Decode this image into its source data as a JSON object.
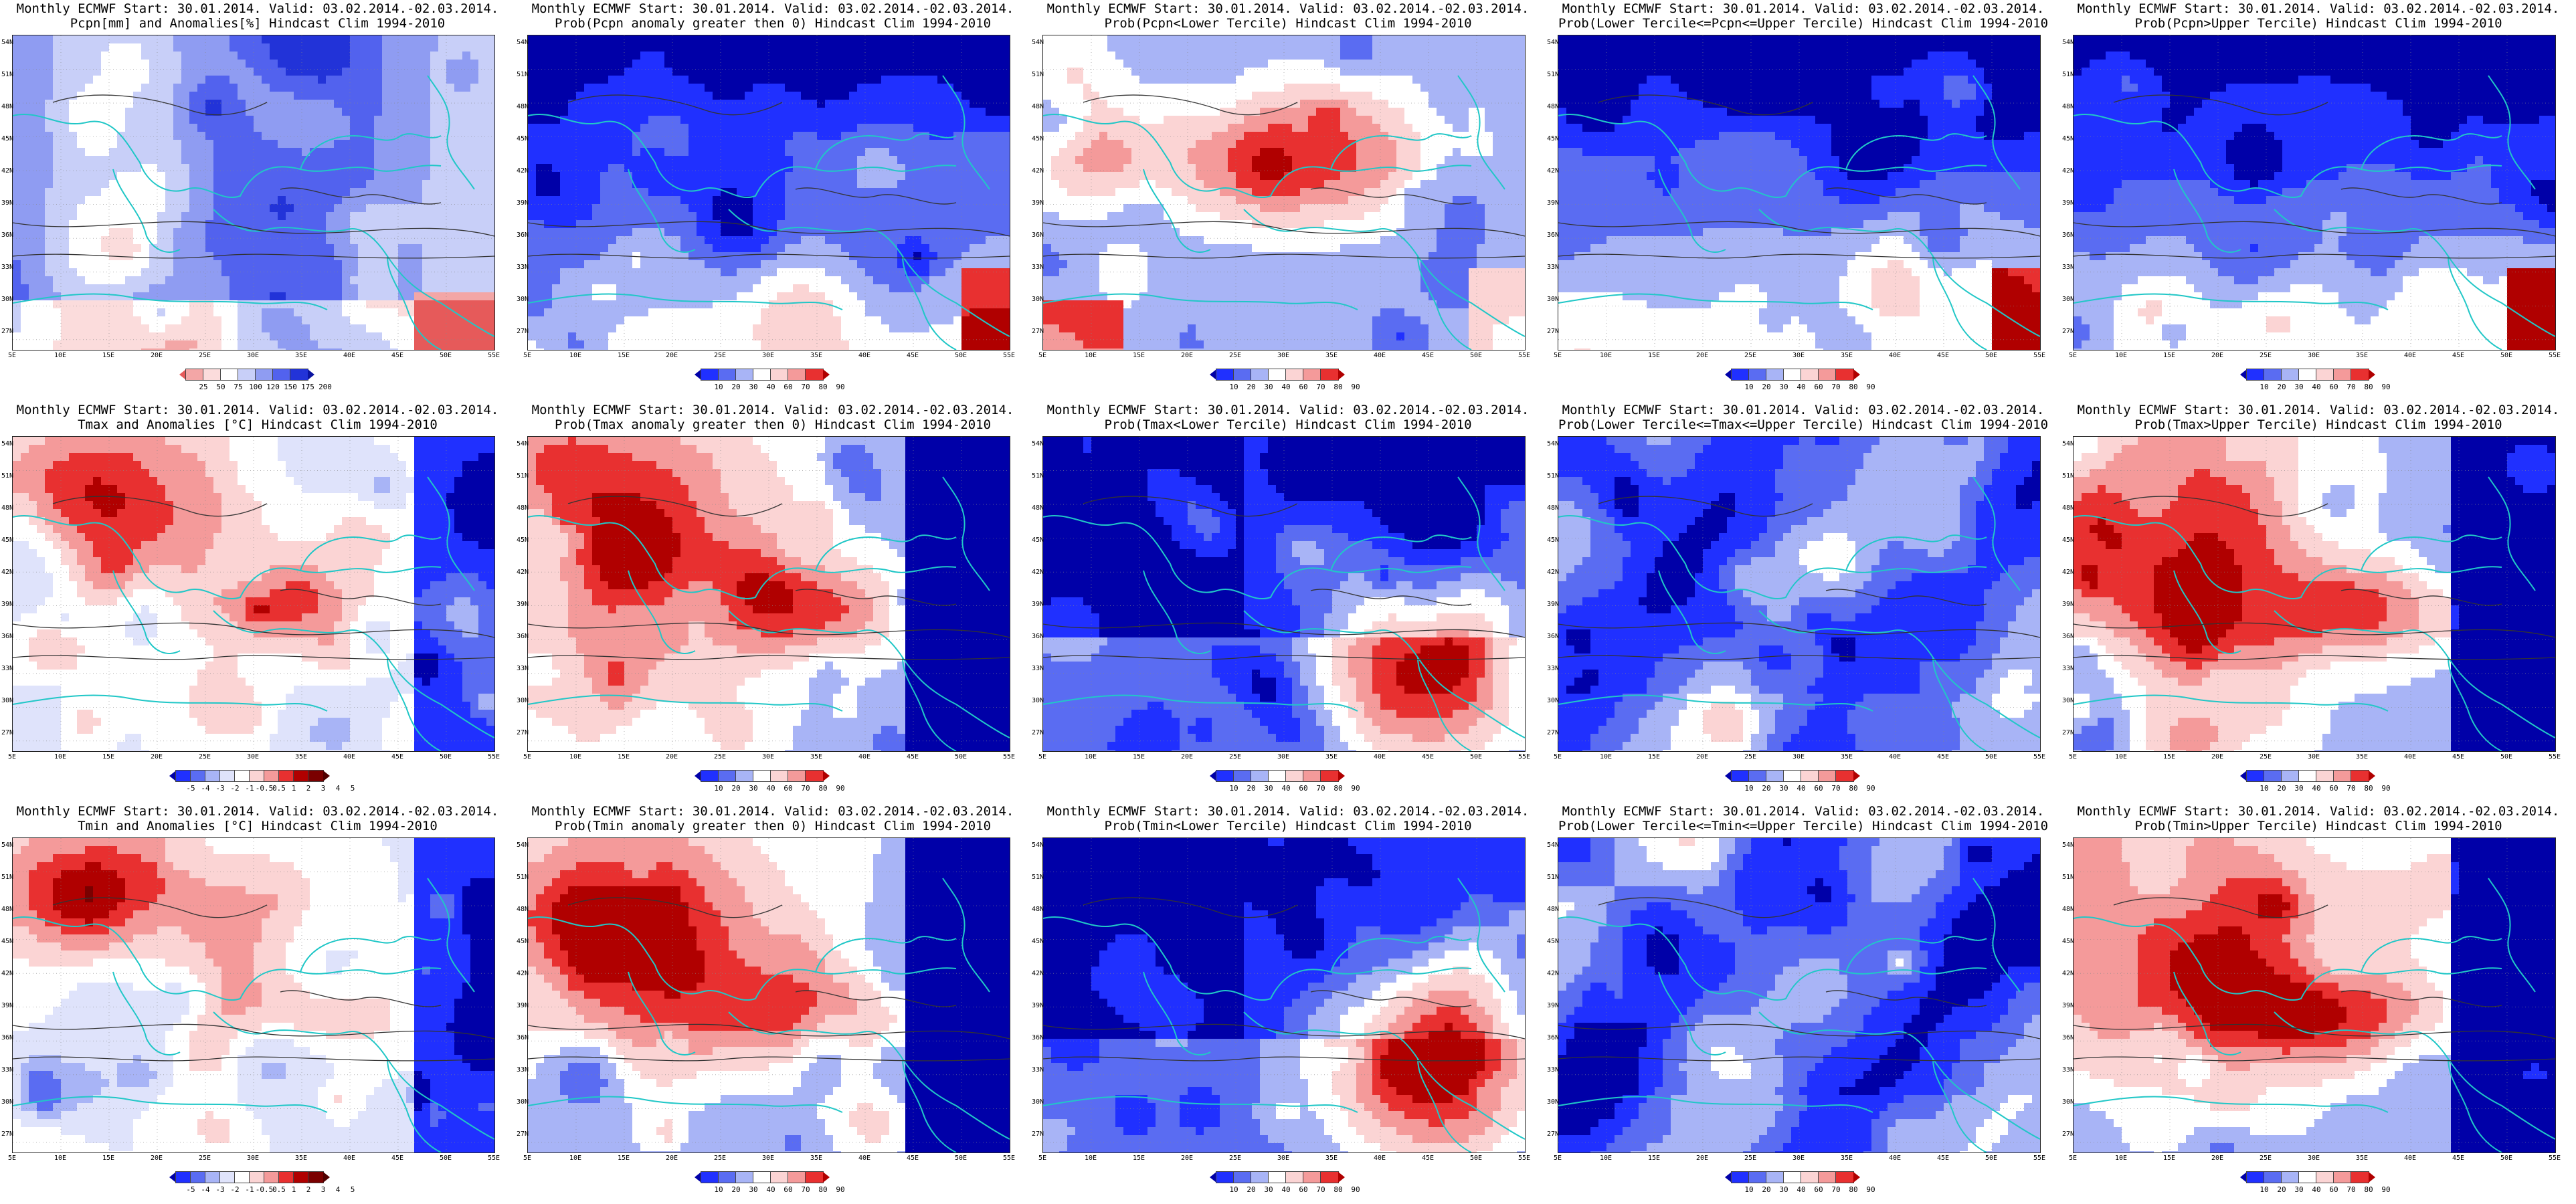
{
  "colors": {
    "darkblue": "#0000a8",
    "blue": "#2030ff",
    "midblue": "#5a6cf2",
    "lightblue": "#a8b4f6",
    "paleblue": "#dfe3fb",
    "white": "#ffffff",
    "palered": "#fbd4d4",
    "lightred": "#f49a9a",
    "red": "#e83030",
    "darkred": "#b00000",
    "coast": "#21c7c7",
    "contour": "#333333"
  },
  "latitudes": [
    "54N",
    "51N",
    "48N",
    "45N",
    "42N",
    "39N",
    "36N",
    "33N",
    "30N",
    "27N"
  ],
  "longitudes": [
    "5E",
    "10E",
    "15E",
    "20E",
    "25E",
    "30E",
    "35E",
    "40E",
    "45E",
    "50E",
    "55E"
  ],
  "panels": [
    {
      "line1": "Monthly ECMWF Start: 30.01.2014. Valid: 03.02.2014.-02.03.2014.",
      "line2": "Pcpn[mm] and Anomalies[%] Hindcast Clim 1994-2010",
      "cbar": "pcpn",
      "ticks": [
        "25",
        "50",
        "75",
        "100",
        "120",
        "150",
        "175",
        "200"
      ],
      "pattern": "wet_south"
    },
    {
      "line1": "Monthly ECMWF Start: 30.01.2014. Valid: 03.02.2014.-02.03.2014.",
      "line2": "Prob(Pcpn anomaly greater then 0) Hindcast Clim 1994-2010",
      "cbar": "prob",
      "ticks": [
        "10",
        "20",
        "30",
        "40",
        "60",
        "70",
        "80",
        "90"
      ],
      "pattern": "blue_north"
    },
    {
      "line1": "Monthly ECMWF Start: 30.01.2014. Valid: 03.02.2014.-02.03.2014.",
      "line2": "Prob(Pcpn<Lower Tercile) Hindcast Clim 1994-2010",
      "cbar": "prob",
      "ticks": [
        "10",
        "20",
        "30",
        "40",
        "60",
        "70",
        "80",
        "90"
      ],
      "pattern": "red_center"
    },
    {
      "line1": "Monthly ECMWF Start: 30.01.2014. Valid: 03.02.2014.-02.03.2014.",
      "line2": "Prob(Lower Tercile<=Pcpn<=Upper Tercile) Hindcast Clim 1994-2010",
      "cbar": "prob",
      "ticks": [
        "10",
        "20",
        "30",
        "40",
        "60",
        "70",
        "80",
        "90"
      ],
      "pattern": "blue_north"
    },
    {
      "line1": "Monthly ECMWF Start: 30.01.2014. Valid: 03.02.2014.-02.03.2014.",
      "line2": "Prob(Pcpn>Upper Tercile) Hindcast Clim 1994-2010",
      "cbar": "prob",
      "ticks": [
        "10",
        "20",
        "30",
        "40",
        "60",
        "70",
        "80",
        "90"
      ],
      "pattern": "blue_north"
    },
    {
      "line1": "Monthly ECMWF Start: 30.01.2014. Valid: 03.02.2014.-02.03.2014.",
      "line2": "Tmax and Anomalies [°C] Hindcast Clim 1994-2010",
      "cbar": "anom",
      "ticks": [
        "-5",
        "-4",
        "-3",
        "-2",
        "-1",
        "-0.5",
        "0.5",
        "1",
        "2",
        "3",
        "4",
        "5"
      ],
      "pattern": "warm_west"
    },
    {
      "line1": "Monthly ECMWF Start: 30.01.2014. Valid: 03.02.2014.-02.03.2014.",
      "line2": "Prob(Tmax anomaly greater then 0) Hindcast Clim 1994-2010",
      "cbar": "prob",
      "ticks": [
        "10",
        "20",
        "30",
        "40",
        "60",
        "70",
        "80",
        "90"
      ],
      "pattern": "hot_west"
    },
    {
      "line1": "Monthly ECMWF Start: 30.01.2014. Valid: 03.02.2014.-02.03.2014.",
      "line2": "Prob(Tmax<Lower Tercile) Hindcast Clim 1994-2010",
      "cbar": "prob",
      "ticks": [
        "10",
        "20",
        "30",
        "40",
        "60",
        "70",
        "80",
        "90"
      ],
      "pattern": "cold_west"
    },
    {
      "line1": "Monthly ECMWF Start: 30.01.2014. Valid: 03.02.2014.-02.03.2014.",
      "line2": "Prob(Lower Tercile<=Tmax<=Upper Tercile) Hindcast Clim 1994-2010",
      "cbar": "prob",
      "ticks": [
        "10",
        "20",
        "30",
        "40",
        "60",
        "70",
        "80",
        "90"
      ],
      "pattern": "mixed_blue"
    },
    {
      "line1": "Monthly ECMWF Start: 30.01.2014. Valid: 03.02.2014.-02.03.2014.",
      "line2": "Prob(Tmax>Upper Tercile) Hindcast Clim 1994-2010",
      "cbar": "prob",
      "ticks": [
        "10",
        "20",
        "30",
        "40",
        "60",
        "70",
        "80",
        "90"
      ],
      "pattern": "hot_west"
    },
    {
      "line1": "Monthly ECMWF Start: 30.01.2014. Valid: 03.02.2014.-02.03.2014.",
      "line2": "Tmin and Anomalies [°C] Hindcast Clim 1994-2010",
      "cbar": "anom",
      "ticks": [
        "-5",
        "-4",
        "-3",
        "-2",
        "-1",
        "-0.5",
        "0.5",
        "1",
        "2",
        "3",
        "4",
        "5"
      ],
      "pattern": "warm_west"
    },
    {
      "line1": "Monthly ECMWF Start: 30.01.2014. Valid: 03.02.2014.-02.03.2014.",
      "line2": "Prob(Tmin anomaly greater then 0) Hindcast Clim 1994-2010",
      "cbar": "prob",
      "ticks": [
        "10",
        "20",
        "30",
        "40",
        "60",
        "70",
        "80",
        "90"
      ],
      "pattern": "hot_west"
    },
    {
      "line1": "Monthly ECMWF Start: 30.01.2014. Valid: 03.02.2014.-02.03.2014.",
      "line2": "Prob(Tmin<Lower Tercile) Hindcast Clim 1994-2010",
      "cbar": "prob",
      "ticks": [
        "10",
        "20",
        "30",
        "40",
        "60",
        "70",
        "80",
        "90"
      ],
      "pattern": "cold_west"
    },
    {
      "line1": "Monthly ECMWF Start: 30.01.2014. Valid: 03.02.2014.-02.03.2014.",
      "line2": "Prob(Lower Tercile<=Tmin<=Upper Tercile) Hindcast Clim 1994-2010",
      "cbar": "prob",
      "ticks": [
        "10",
        "20",
        "30",
        "40",
        "60",
        "70",
        "80",
        "90"
      ],
      "pattern": "mixed_blue"
    },
    {
      "line1": "Monthly ECMWF Start: 30.01.2014. Valid: 03.02.2014.-02.03.2014.",
      "line2": "Prob(Tmin>Upper Tercile) Hindcast Clim 1994-2010",
      "cbar": "prob",
      "ticks": [
        "10",
        "20",
        "30",
        "40",
        "60",
        "70",
        "80",
        "90"
      ],
      "pattern": "hot_west"
    }
  ]
}
